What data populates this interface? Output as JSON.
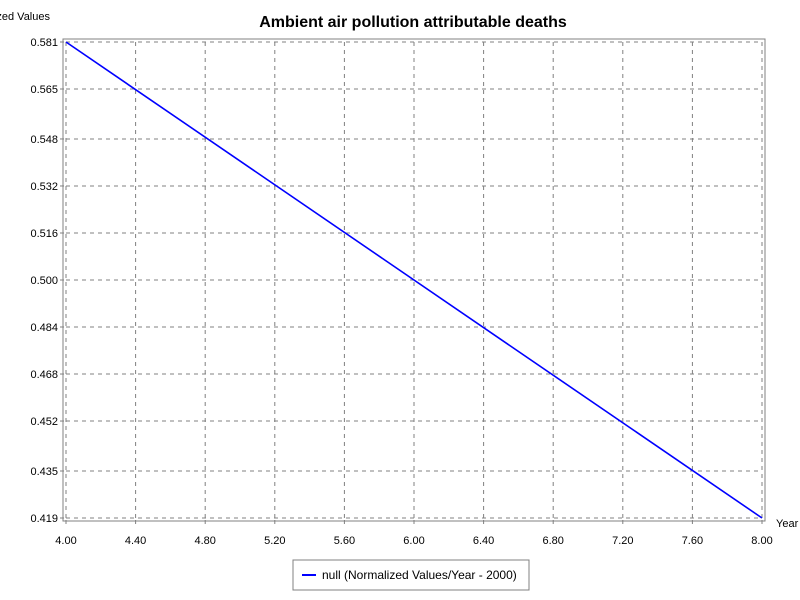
{
  "chart_data": {
    "type": "line",
    "title": "Ambient air pollution attributable deaths",
    "ylabel": "Normalized Values",
    "xlabel": "Year",
    "x": [
      4.0,
      8.0
    ],
    "series": [
      {
        "name": "null (Normalized Values/Year - 2000)",
        "x": [
          4.0,
          8.0
        ],
        "values": [
          0.581,
          0.419
        ]
      }
    ],
    "xlim": [
      4.0,
      8.0
    ],
    "ylim": [
      0.419,
      0.581
    ],
    "xticks": [
      "4.00",
      "4.40",
      "4.80",
      "5.20",
      "5.60",
      "6.00",
      "6.40",
      "6.80",
      "7.20",
      "7.60",
      "8.00"
    ],
    "yticks": [
      "0.581",
      "0.565",
      "0.548",
      "0.532",
      "0.516",
      "0.500",
      "0.484",
      "0.468",
      "0.452",
      "0.435",
      "0.419"
    ],
    "grid": true,
    "legend": "bottom",
    "colors": {
      "series": "#0000ff",
      "grid": "#808080"
    }
  }
}
